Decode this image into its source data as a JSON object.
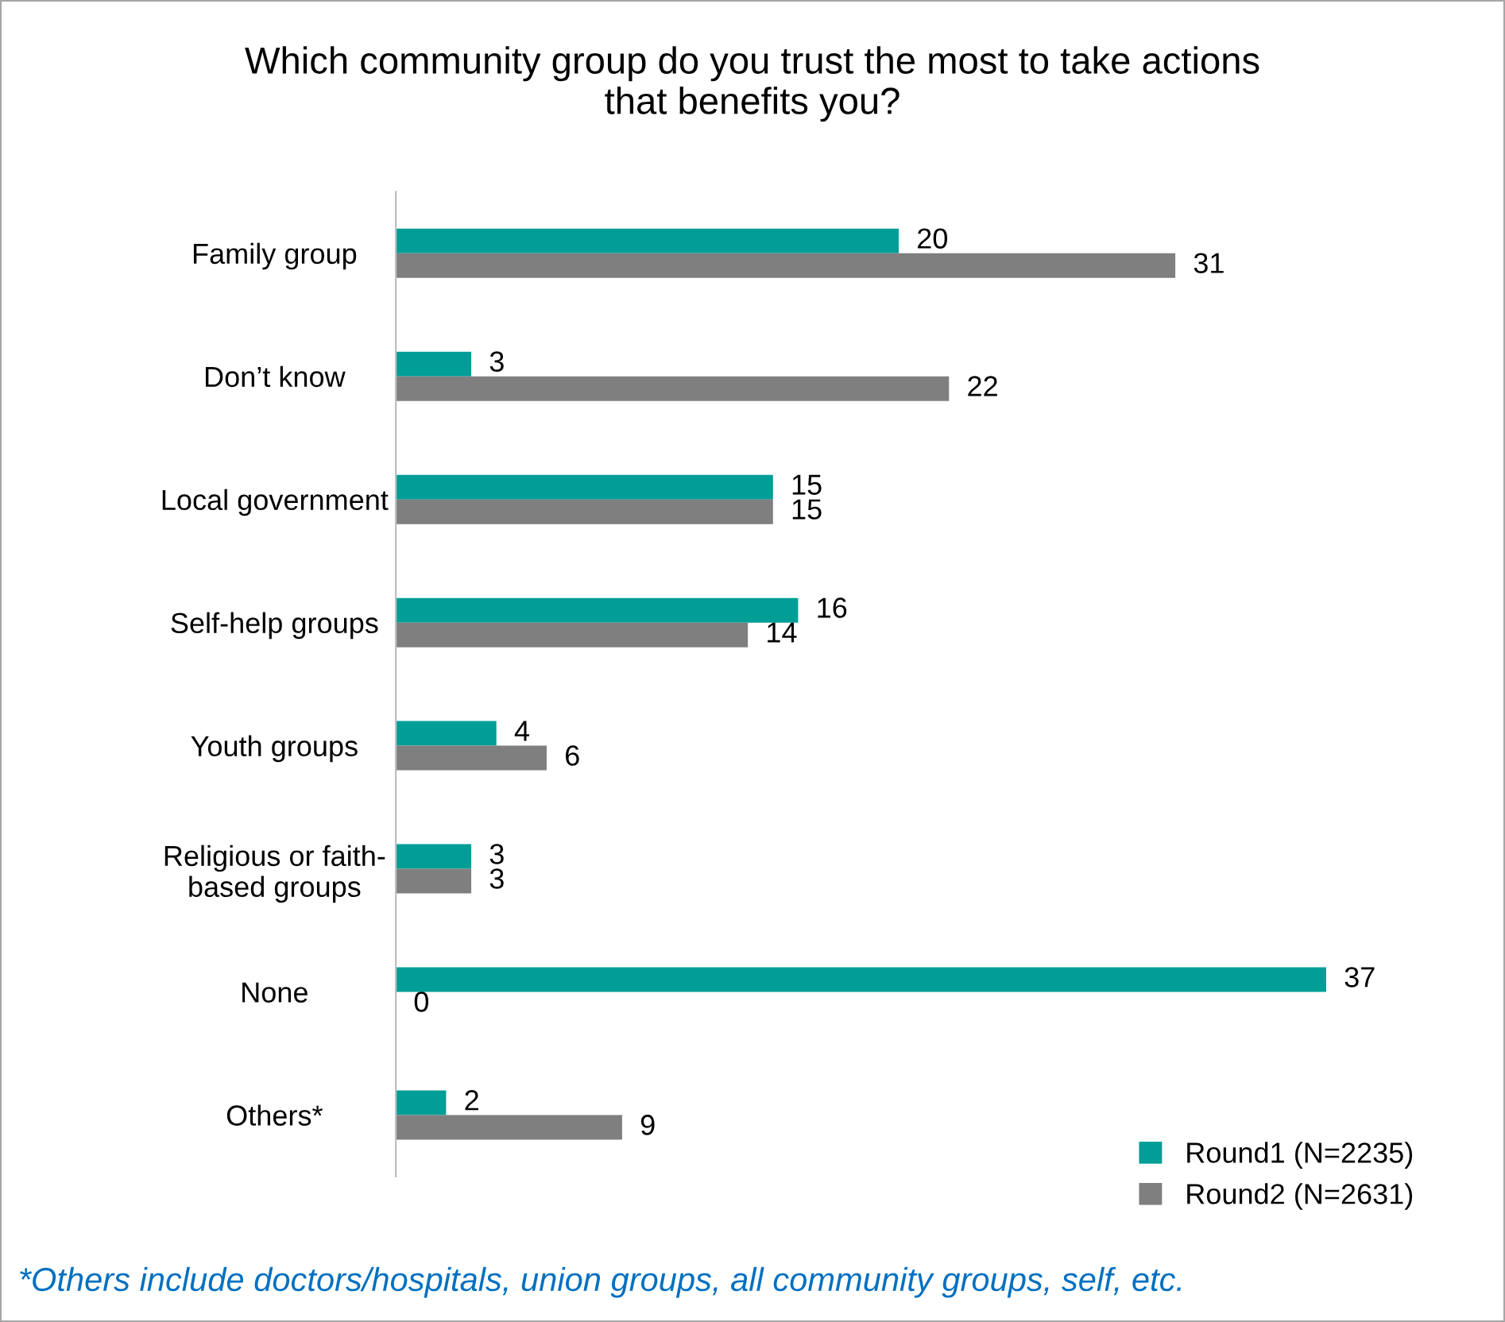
{
  "chart_data": {
    "type": "bar",
    "orientation": "horizontal",
    "title": "Which community group do you trust the most to take actions\nthat benefits you?",
    "categories": [
      "Family group",
      "Don’t know",
      "Local government",
      "Self-help groups",
      "Youth groups",
      "Religious or faith-\nbased groups",
      "None",
      "Others*"
    ],
    "series": [
      {
        "name": "Round1 (N=2235)",
        "color": "#009e96",
        "values": [
          20,
          3,
          15,
          16,
          4,
          3,
          37,
          2
        ]
      },
      {
        "name": "Round2 (N=2631)",
        "color": "#7f7f7f",
        "values": [
          31,
          22,
          15,
          14,
          6,
          3,
          0,
          9
        ]
      }
    ],
    "data_labels": true,
    "legend": "bottom right",
    "grid": false,
    "annotations": [
      "*Others include doctors/hospitals, union groups, all community groups, self, etc."
    ]
  }
}
